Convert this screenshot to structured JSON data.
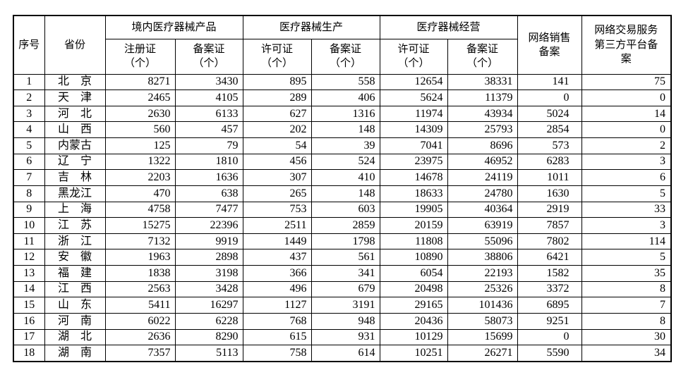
{
  "chart_data": {
    "type": "table",
    "columns": {
      "no": "序号",
      "province": "省份",
      "groups": [
        {
          "label": "境内医疗器械产品",
          "children": [
            "注册证\n（个）",
            "备案证\n（个）"
          ]
        },
        {
          "label": "医疗器械生产",
          "children": [
            "许可证\n（个）",
            "备案证\n（个）"
          ]
        },
        {
          "label": "医疗器械经营",
          "children": [
            "许可证\n（个）",
            "备案证\n（个）"
          ]
        }
      ],
      "network_sales": "网络销售\n备案",
      "third_party": "网络交易服务\n第三方平台备\n案"
    },
    "rows": [
      {
        "no": "1",
        "province": "北　京",
        "values": [
          8271,
          3430,
          895,
          558,
          12654,
          38331,
          141,
          75
        ]
      },
      {
        "no": "2",
        "province": "天　津",
        "values": [
          2465,
          4105,
          289,
          406,
          5624,
          11379,
          0,
          0
        ]
      },
      {
        "no": "3",
        "province": "河　北",
        "values": [
          2630,
          6133,
          627,
          1316,
          11974,
          43934,
          5024,
          14
        ]
      },
      {
        "no": "4",
        "province": "山　西",
        "values": [
          560,
          457,
          202,
          148,
          14309,
          25793,
          2854,
          0
        ]
      },
      {
        "no": "5",
        "province": "内蒙古",
        "values": [
          125,
          79,
          54,
          39,
          7041,
          8696,
          573,
          2
        ]
      },
      {
        "no": "6",
        "province": "辽　宁",
        "values": [
          1322,
          1810,
          456,
          524,
          23975,
          46952,
          6283,
          3
        ]
      },
      {
        "no": "7",
        "province": "吉　林",
        "values": [
          2203,
          1636,
          307,
          410,
          14678,
          24119,
          1011,
          6
        ]
      },
      {
        "no": "8",
        "province": "黑龙江",
        "values": [
          470,
          638,
          265,
          148,
          18633,
          24780,
          1630,
          5
        ]
      },
      {
        "no": "9",
        "province": "上　海",
        "values": [
          4758,
          7477,
          753,
          603,
          19905,
          40364,
          2919,
          33
        ]
      },
      {
        "no": "10",
        "province": "江　苏",
        "values": [
          15275,
          22396,
          2511,
          2859,
          20159,
          63919,
          7857,
          3
        ]
      },
      {
        "no": "11",
        "province": "浙　江",
        "values": [
          7132,
          9919,
          1449,
          1798,
          11808,
          55096,
          7802,
          114
        ]
      },
      {
        "no": "12",
        "province": "安　徽",
        "values": [
          1963,
          2898,
          437,
          561,
          10890,
          38806,
          6421,
          5
        ]
      },
      {
        "no": "13",
        "province": "福　建",
        "values": [
          1838,
          3198,
          366,
          341,
          6054,
          22193,
          1582,
          35
        ]
      },
      {
        "no": "14",
        "province": "江　西",
        "values": [
          2563,
          3428,
          496,
          679,
          20498,
          25326,
          3372,
          8
        ]
      },
      {
        "no": "15",
        "province": "山　东",
        "values": [
          5411,
          16297,
          1127,
          3191,
          29165,
          101436,
          6895,
          7
        ]
      },
      {
        "no": "16",
        "province": "河　南",
        "values": [
          6022,
          6228,
          768,
          948,
          20436,
          58073,
          9251,
          8
        ]
      },
      {
        "no": "17",
        "province": "湖　北",
        "values": [
          2636,
          8290,
          615,
          931,
          10129,
          15699,
          0,
          30
        ]
      },
      {
        "no": "18",
        "province": "湖　南",
        "values": [
          7357,
          5113,
          758,
          614,
          10251,
          26271,
          5590,
          34
        ]
      }
    ]
  },
  "colors": {
    "border": "#000000",
    "text": "#000000",
    "background": "#ffffff"
  }
}
